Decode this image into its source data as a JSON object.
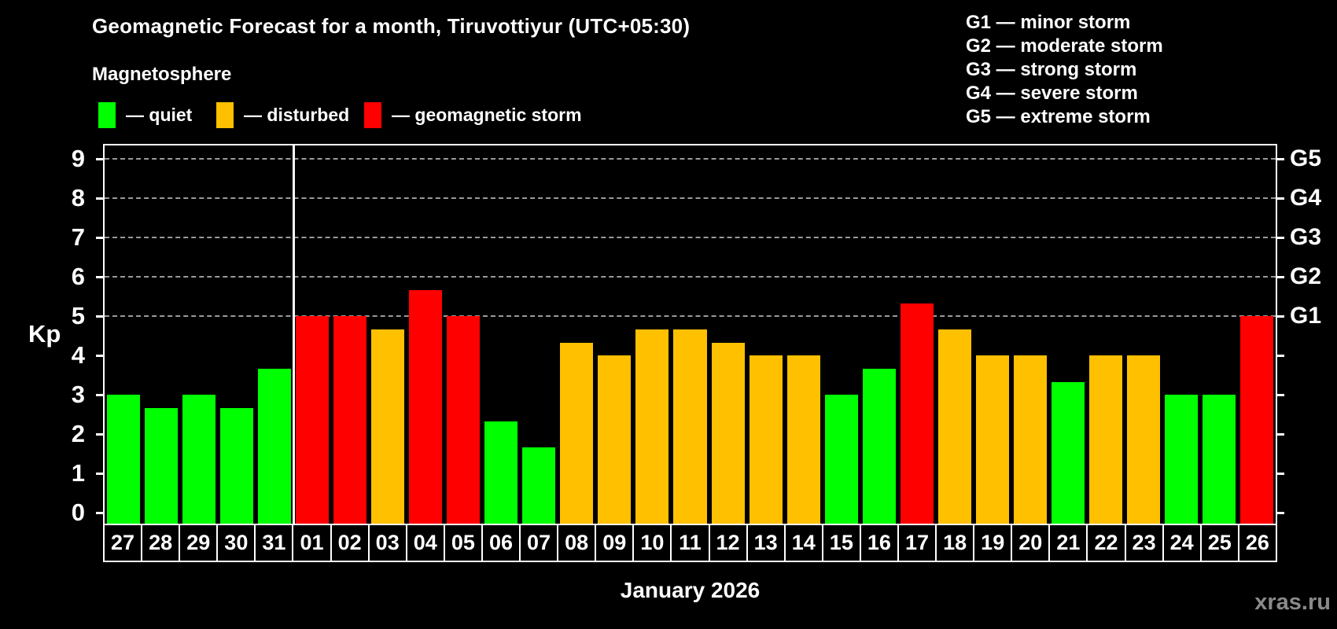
{
  "title": "Geomagnetic Forecast for a month, Tiruvottiyur (UTC+05:30)",
  "subtitle": "Magnetosphere",
  "legend": {
    "items": [
      {
        "key": "quiet",
        "label": "— quiet",
        "color": "#00ff00"
      },
      {
        "key": "disturbed",
        "label": "— disturbed",
        "color": "#ffc000"
      },
      {
        "key": "storm",
        "label": "— geomagnetic storm",
        "color": "#ff0000"
      }
    ]
  },
  "g_legend": [
    "G1 — minor storm",
    "G2 — moderate storm",
    "G3 — strong storm",
    "G4 — severe storm",
    "G5 — extreme storm"
  ],
  "watermark": "xras.ru",
  "chart_data": {
    "type": "bar",
    "title": "Geomagnetic Forecast for a month, Tiruvottiyur (UTC+05:30)",
    "ylabel": "Kp",
    "xlabel": "January 2026",
    "ylim": [
      0,
      9
    ],
    "yticks": [
      0,
      1,
      2,
      3,
      4,
      5,
      6,
      7,
      8,
      9
    ],
    "gridlines": [
      5,
      6,
      7,
      8,
      9
    ],
    "grid": "dashed, Kp 5-9 only",
    "legend_position": "top",
    "right_axis_labels": {
      "5": "G1",
      "6": "G2",
      "7": "G3",
      "8": "G4",
      "9": "G5"
    },
    "separator_after": "31",
    "categories": [
      "27",
      "28",
      "29",
      "30",
      "31",
      "01",
      "02",
      "03",
      "04",
      "05",
      "06",
      "07",
      "08",
      "09",
      "10",
      "11",
      "12",
      "13",
      "14",
      "15",
      "16",
      "17",
      "18",
      "19",
      "20",
      "21",
      "22",
      "23",
      "24",
      "25",
      "26"
    ],
    "values": [
      3,
      2.67,
      3,
      2.67,
      3.67,
      5,
      5,
      4.67,
      5.67,
      5,
      2.33,
      1.67,
      4.33,
      4,
      4.67,
      4.67,
      4.33,
      4,
      4,
      3,
      3.67,
      5.33,
      4.67,
      4,
      4,
      3.33,
      4,
      4,
      3,
      3,
      5
    ],
    "status": [
      "quiet",
      "quiet",
      "quiet",
      "quiet",
      "quiet",
      "storm",
      "storm",
      "disturbed",
      "storm",
      "storm",
      "quiet",
      "quiet",
      "disturbed",
      "disturbed",
      "disturbed",
      "disturbed",
      "disturbed",
      "disturbed",
      "disturbed",
      "quiet",
      "quiet",
      "storm",
      "disturbed",
      "disturbed",
      "disturbed",
      "quiet",
      "disturbed",
      "disturbed",
      "quiet",
      "quiet",
      "storm"
    ],
    "colors": {
      "quiet": "#00ff00",
      "disturbed": "#ffc000",
      "storm": "#ff0000"
    }
  }
}
